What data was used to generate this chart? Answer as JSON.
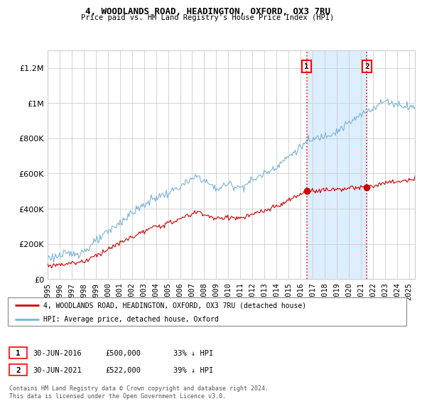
{
  "title": "4, WOODLANDS ROAD, HEADINGTON, OXFORD, OX3 7RU",
  "subtitle": "Price paid vs. HM Land Registry's House Price Index (HPI)",
  "sale1_date": "30-JUN-2016",
  "sale1_price": 500000,
  "sale1_label": "33% ↓ HPI",
  "sale2_date": "30-JUN-2021",
  "sale2_price": 522000,
  "sale2_label": "39% ↓ HPI",
  "legend1": "4, WOODLANDS ROAD, HEADINGTON, OXFORD, OX3 7RU (detached house)",
  "legend2": "HPI: Average price, detached house, Oxford",
  "footnote": "Contains HM Land Registry data © Crown copyright and database right 2024.\nThis data is licensed under the Open Government Licence v3.0.",
  "hpi_color": "#7ab3d8",
  "price_color": "#cc0000",
  "shade_color": "#ddeeff",
  "ylim": [
    0,
    1300000
  ],
  "sale1_year": 2016.5,
  "sale2_year": 2021.5,
  "xmin": 1995,
  "xmax": 2025.5
}
